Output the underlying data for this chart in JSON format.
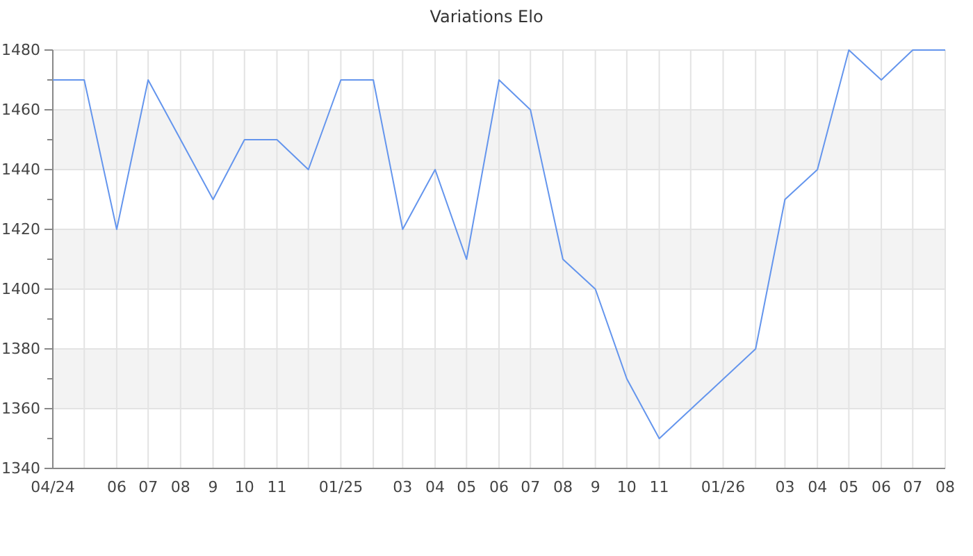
{
  "chart_data": {
    "type": "line",
    "title": "Variations Elo",
    "x": [
      "2024-04",
      "2024-05",
      "2024-06",
      "2024-07",
      "2024-08",
      "2024-09",
      "2024-10",
      "2024-11",
      "2024-12",
      "2025-01",
      "2025-02",
      "2025-03",
      "2025-04",
      "2025-05",
      "2025-06",
      "2025-07",
      "2025-08",
      "2025-09",
      "2025-10",
      "2025-11",
      "2026-02",
      "2026-03",
      "2026-04",
      "2026-05",
      "2026-06",
      "2026-07",
      "2026-08"
    ],
    "series": [
      {
        "color": "#6495ed",
        "values": [
          1470,
          1470,
          1420,
          1470,
          1450,
          1430,
          1450,
          1450,
          1440,
          1470,
          1470,
          1420,
          1440,
          1410,
          1470,
          1460,
          1410,
          1400,
          1370,
          1350,
          1380,
          1430,
          1440,
          1480,
          1470,
          1480,
          1480
        ]
      }
    ],
    "xlim": [
      "2024-04",
      "2026-08"
    ],
    "xticks": [
      {
        "value": "2024-04",
        "label": "04/24"
      },
      {
        "value": "2024-05",
        "label": null
      },
      {
        "value": "2024-06",
        "label": "06"
      },
      {
        "value": "2024-07",
        "label": "07"
      },
      {
        "value": "2024-08",
        "label": "08"
      },
      {
        "value": "2024-09",
        "label": "9"
      },
      {
        "value": "2024-10",
        "label": "10"
      },
      {
        "value": "2024-11",
        "label": "11"
      },
      {
        "value": "2024-12",
        "label": null
      },
      {
        "value": "2025-01",
        "label": "01/25"
      },
      {
        "value": "2025-02",
        "label": null
      },
      {
        "value": "2025-03",
        "label": "03"
      },
      {
        "value": "2025-04",
        "label": "04"
      },
      {
        "value": "2025-05",
        "label": "05"
      },
      {
        "value": "2025-06",
        "label": "06"
      },
      {
        "value": "2025-07",
        "label": "07"
      },
      {
        "value": "2025-08",
        "label": "08"
      },
      {
        "value": "2025-09",
        "label": "9"
      },
      {
        "value": "2025-10",
        "label": "10"
      },
      {
        "value": "2025-11",
        "label": "11"
      },
      {
        "value": "2025-12",
        "label": null
      },
      {
        "value": "2026-01",
        "label": "01/26"
      },
      {
        "value": "2026-02",
        "label": null
      },
      {
        "value": "2026-03",
        "label": "03"
      },
      {
        "value": "2026-04",
        "label": "04"
      },
      {
        "value": "2026-05",
        "label": "05"
      },
      {
        "value": "2026-06",
        "label": "06"
      },
      {
        "value": "2026-07",
        "label": "07"
      },
      {
        "value": "2026-08",
        "label": "08"
      }
    ],
    "ylim": [
      1340,
      1480
    ],
    "yticks": [
      1340,
      {
        "value": 1350,
        "label": null
      },
      1360,
      {
        "value": 1370,
        "label": null
      },
      1380,
      {
        "value": 1390,
        "label": null
      },
      1400,
      {
        "value": 1410,
        "label": null
      },
      1420,
      {
        "value": 1430,
        "label": null
      },
      1440,
      {
        "value": 1450,
        "label": null
      },
      1460,
      {
        "value": 1470,
        "label": null
      },
      1480
    ],
    "bands": [
      {
        "axis": "y",
        "from": 1360,
        "to": 1380,
        "color": "#f3f3f3"
      },
      {
        "axis": "y",
        "from": 1400,
        "to": 1420,
        "color": "#f3f3f3"
      },
      {
        "axis": "y",
        "from": 1440,
        "to": 1460,
        "color": "#f3f3f3"
      }
    ],
    "grid": true,
    "marker": "none",
    "line_style": "solid"
  }
}
